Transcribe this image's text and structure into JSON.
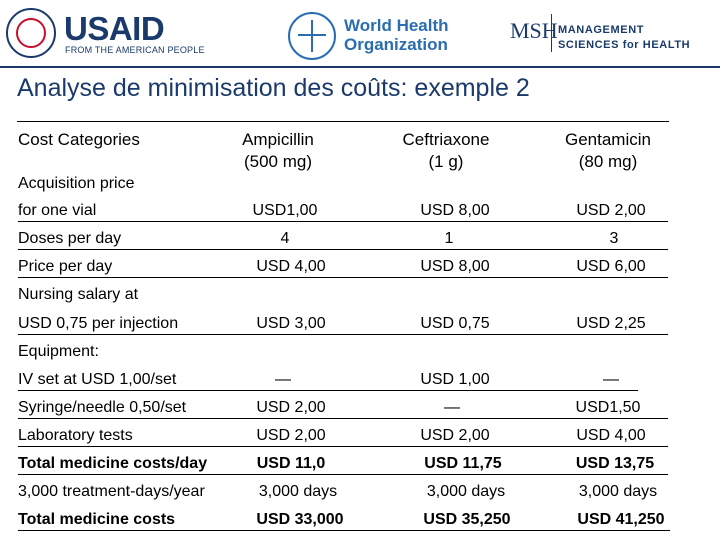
{
  "logos": {
    "usaid": "USAID",
    "usaid_tagline": "FROM THE AMERICAN PEOPLE",
    "who_line1": "World Health",
    "who_line2": "Organization",
    "msh_mark": "MSH",
    "msh_line1": "MANAGEMENT",
    "msh_line2": "SCIENCES for HEALTH"
  },
  "title": "Analyse de minimisation des coûts: exemple 2",
  "columns": {
    "categories": "Cost Categories",
    "ampicillin": [
      "Ampicillin",
      "(500 mg)"
    ],
    "ceftriaxone": [
      "Ceftriaxone",
      "(1 g)"
    ],
    "gentamicin": [
      "Gentamicin",
      "(80 mg)"
    ]
  },
  "rows": {
    "acquisition": {
      "label1": "Acquisition price",
      "label2": "for one vial",
      "amp": "USD1,00",
      "cef": "USD 8,00",
      "gen": "USD 2,00"
    },
    "doses": {
      "label": "Doses per day",
      "amp": "4",
      "cef": "1",
      "gen": "3"
    },
    "price_day": {
      "label": "Price per day",
      "amp": "USD 4,00",
      "cef": "USD 8,00",
      "gen": "USD 6,00"
    },
    "nursing": {
      "label1": "Nursing salary at",
      "label2": "USD 0,75 per injection",
      "amp": "USD 3,00",
      "cef": "USD 0,75",
      "gen": "USD 2,25"
    },
    "equipment": {
      "label": "Equipment:"
    },
    "iv_set": {
      "label": "IV set at USD 1,00/set",
      "amp": "—",
      "cef": "USD 1,00",
      "gen": "—"
    },
    "syringe": {
      "label": "Syringe/needle 0,50/set",
      "amp": "USD 2,00",
      "cef": "—",
      "gen": "USD1,50"
    },
    "lab": {
      "label": "Laboratory tests",
      "amp": "USD 2,00",
      "cef": "USD 2,00",
      "gen": "USD 4,00"
    },
    "total_day": {
      "label": "Total medicine costs/day",
      "amp": "USD 11,0",
      "cef": "USD 11,75",
      "gen": "USD 13,75"
    },
    "treatment_days": {
      "label": "3,000 treatment-days/year",
      "amp": "3,000 days",
      "cef": "3,000 days",
      "gen": "3,000 days"
    },
    "total": {
      "label": "Total medicine costs",
      "amp": "USD 33,000",
      "cef": "USD 35,250",
      "gen": "USD 41,250"
    }
  }
}
